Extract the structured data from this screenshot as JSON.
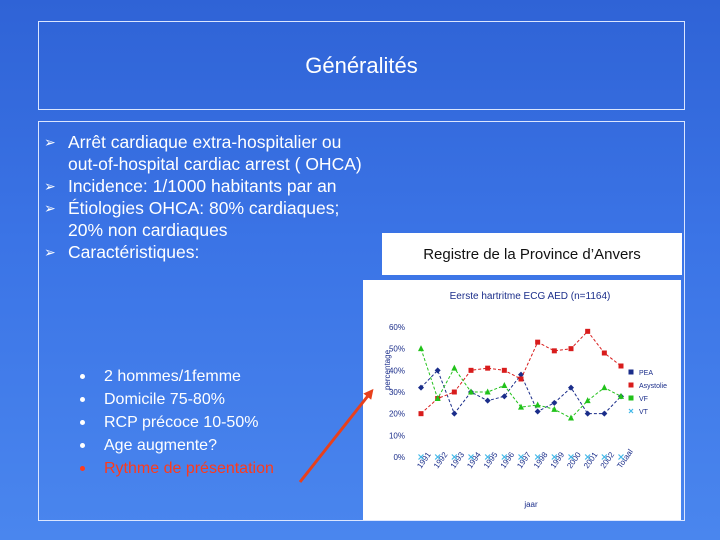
{
  "slide": {
    "title": "Généralités",
    "bullets": [
      "Arrêt cardiaque extra-hospitalier ou out-of-hospital cardiac arrest ( OHCA)",
      "Incidence: 1/1000 habitants par an",
      "Étiologies OHCA: 80% cardiaques; 20% non cardiaques",
      "Caractéristiques:"
    ],
    "sub_bullets": [
      "2 hommes/1femme",
      "Domicile 75-80%",
      "RCP précoce 10-50%",
      "Age augmente?",
      "Rythme de présentation"
    ],
    "registry_label": "Registre de la Province d’Anvers"
  },
  "colors": {
    "background": "#3b74e6",
    "highlight": "#ff3a1a",
    "arrow": "#e8401c"
  },
  "chart_data": {
    "type": "line",
    "title": "Eerste hartritme ECG AED (n=1164)",
    "xlabel": "jaar",
    "ylabel": "percentage",
    "categories": [
      "1991",
      "1992",
      "1993",
      "1994",
      "1995",
      "1996",
      "1997",
      "1998",
      "1999",
      "2000",
      "2001",
      "2002",
      "Totaal"
    ],
    "ylim": [
      0,
      60
    ],
    "yticks": [
      "0%",
      "10%",
      "20%",
      "30%",
      "40%",
      "50%",
      "60%"
    ],
    "legend_position": "right",
    "series": [
      {
        "name": "PEA",
        "color": "#1a2d8a",
        "marker": "diamond",
        "values": [
          32,
          40,
          20,
          30,
          26,
          28,
          38,
          21,
          25,
          32,
          20,
          20,
          28
        ]
      },
      {
        "name": "Asystolie",
        "color": "#d81c1c",
        "marker": "square",
        "values": [
          20,
          27,
          30,
          40,
          41,
          40,
          36,
          53,
          49,
          50,
          58,
          48,
          42
        ]
      },
      {
        "name": "VF",
        "color": "#21c21a",
        "marker": "triangle",
        "values": [
          50,
          27,
          41,
          30,
          30,
          33,
          23,
          24,
          22,
          18,
          26,
          32,
          28
        ]
      },
      {
        "name": "VT",
        "color": "#40b8e8",
        "marker": "x",
        "values": [
          0,
          0,
          0,
          0,
          0,
          0,
          0,
          0,
          0,
          0,
          0,
          0,
          0
        ]
      }
    ]
  }
}
